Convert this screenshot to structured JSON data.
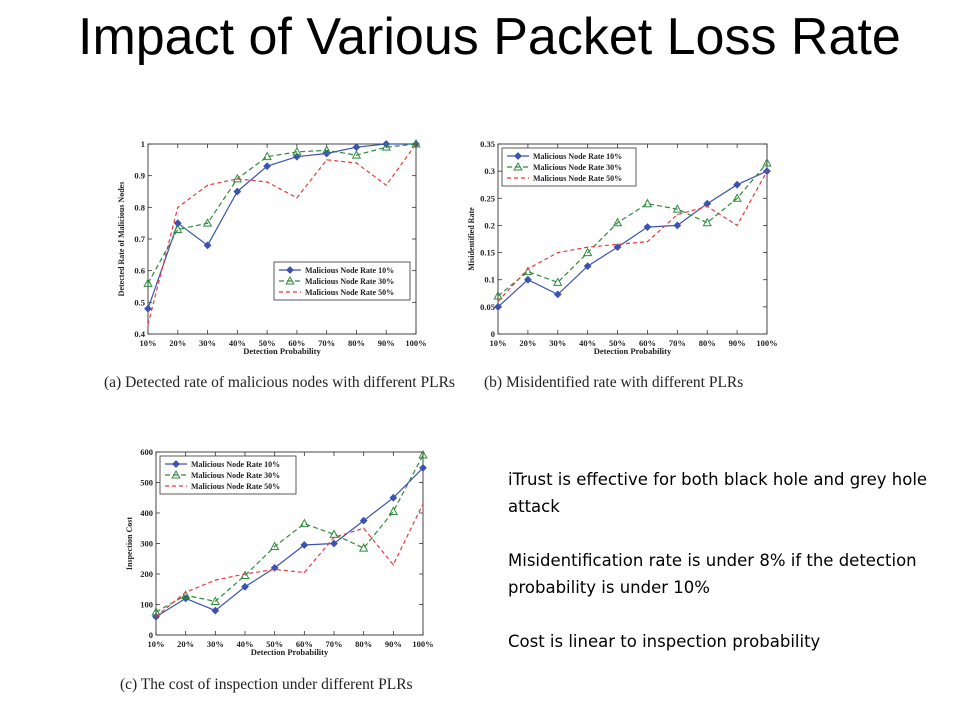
{
  "slide": {
    "title": "Impact of Various Packet Loss Rate",
    "notes": [
      "iTrust is effective for both black hole and grey hole attack",
      "Misidentification rate is under 8% if the detection probability is under 10%",
      "Cost is linear to inspection probability"
    ]
  },
  "chart_data": [
    {
      "id": "a",
      "type": "line",
      "caption": "(a) Detected rate of malicious nodes with different PLRs",
      "xlabel": "Detection Probability",
      "ylabel": "Detected Rate of Malicious Nodes",
      "categories": [
        "10%",
        "20%",
        "30%",
        "40%",
        "50%",
        "60%",
        "70%",
        "80%",
        "90%",
        "100%"
      ],
      "ylim": [
        0.4,
        1.0
      ],
      "yticks": [
        0.4,
        0.5,
        0.6,
        0.7,
        0.8,
        0.9,
        1.0
      ],
      "ytick_labels": [
        "0.4",
        "0.5",
        "0.6",
        "0.7",
        "0.8",
        "0.9",
        "1"
      ],
      "legend_position": "bottom-right",
      "series": [
        {
          "name": "Malicious Node Rate 10%",
          "color": "#3c52b0",
          "dash": "",
          "marker": "diamond",
          "values": [
            0.48,
            0.75,
            0.68,
            0.85,
            0.93,
            0.96,
            0.97,
            0.99,
            1.0,
            1.0
          ]
        },
        {
          "name": "Malicious Node Rate 30%",
          "color": "#2e8b3e",
          "dash": "5,3",
          "marker": "triangle",
          "values": [
            0.56,
            0.73,
            0.75,
            0.89,
            0.96,
            0.975,
            0.98,
            0.965,
            0.99,
            1.0
          ]
        },
        {
          "name": "Malicious Node Rate 50%",
          "color": "#e83a3a",
          "dash": "4,3",
          "marker": "none",
          "values": [
            0.43,
            0.8,
            0.87,
            0.89,
            0.88,
            0.83,
            0.95,
            0.94,
            0.87,
            1.0
          ]
        }
      ]
    },
    {
      "id": "b",
      "type": "line",
      "caption": "(b) Misidentified rate with different PLRs",
      "xlabel": "Detection Probability",
      "ylabel": "Misidentified Rate",
      "categories": [
        "10%",
        "20%",
        "30%",
        "40%",
        "50%",
        "60%",
        "70%",
        "80%",
        "90%",
        "100%"
      ],
      "ylim": [
        0,
        0.35
      ],
      "yticks": [
        0,
        0.05,
        0.1,
        0.15,
        0.2,
        0.25,
        0.3,
        0.35
      ],
      "ytick_labels": [
        "0",
        "0.05",
        "0.1",
        "0.15",
        "0.2",
        "0.25",
        "0.3",
        "0.35"
      ],
      "legend_position": "top-left",
      "series": [
        {
          "name": "Malicious Node Rate 10%",
          "color": "#3c52b0",
          "dash": "",
          "marker": "diamond",
          "values": [
            0.05,
            0.1,
            0.073,
            0.125,
            0.16,
            0.197,
            0.2,
            0.24,
            0.275,
            0.3
          ]
        },
        {
          "name": "Malicious Node Rate 30%",
          "color": "#2e8b3e",
          "dash": "5,3",
          "marker": "triangle",
          "values": [
            0.07,
            0.115,
            0.095,
            0.15,
            0.205,
            0.24,
            0.23,
            0.205,
            0.25,
            0.315
          ]
        },
        {
          "name": "Malicious Node Rate 50%",
          "color": "#e83a3a",
          "dash": "4,3",
          "marker": "none",
          "values": [
            0.06,
            0.12,
            0.15,
            0.16,
            0.165,
            0.17,
            0.22,
            0.235,
            0.2,
            0.3
          ]
        }
      ]
    },
    {
      "id": "c",
      "type": "line",
      "caption": "(c) The cost of inspection under different PLRs",
      "xlabel": "Detection Probability",
      "ylabel": "Inspection Cost",
      "categories": [
        "10%",
        "20%",
        "30%",
        "40%",
        "50%",
        "60%",
        "70%",
        "80%",
        "90%",
        "100%"
      ],
      "ylim": [
        0,
        600
      ],
      "yticks": [
        0,
        100,
        200,
        300,
        400,
        500,
        600
      ],
      "ytick_labels": [
        "0",
        "100",
        "200",
        "300",
        "400",
        "500",
        "600"
      ],
      "legend_position": "top-left",
      "series": [
        {
          "name": "Malicious Node Rate 10%",
          "color": "#3c52b0",
          "dash": "",
          "marker": "diamond",
          "values": [
            60,
            120,
            80,
            158,
            220,
            295,
            300,
            375,
            450,
            548
          ]
        },
        {
          "name": "Malicious Node Rate 30%",
          "color": "#2e8b3e",
          "dash": "5,3",
          "marker": "triangle",
          "values": [
            75,
            130,
            110,
            195,
            290,
            365,
            330,
            285,
            405,
            590
          ]
        },
        {
          "name": "Malicious Node Rate 50%",
          "color": "#e83a3a",
          "dash": "4,3",
          "marker": "none",
          "values": [
            60,
            140,
            180,
            200,
            215,
            205,
            320,
            350,
            230,
            430
          ]
        }
      ]
    }
  ]
}
